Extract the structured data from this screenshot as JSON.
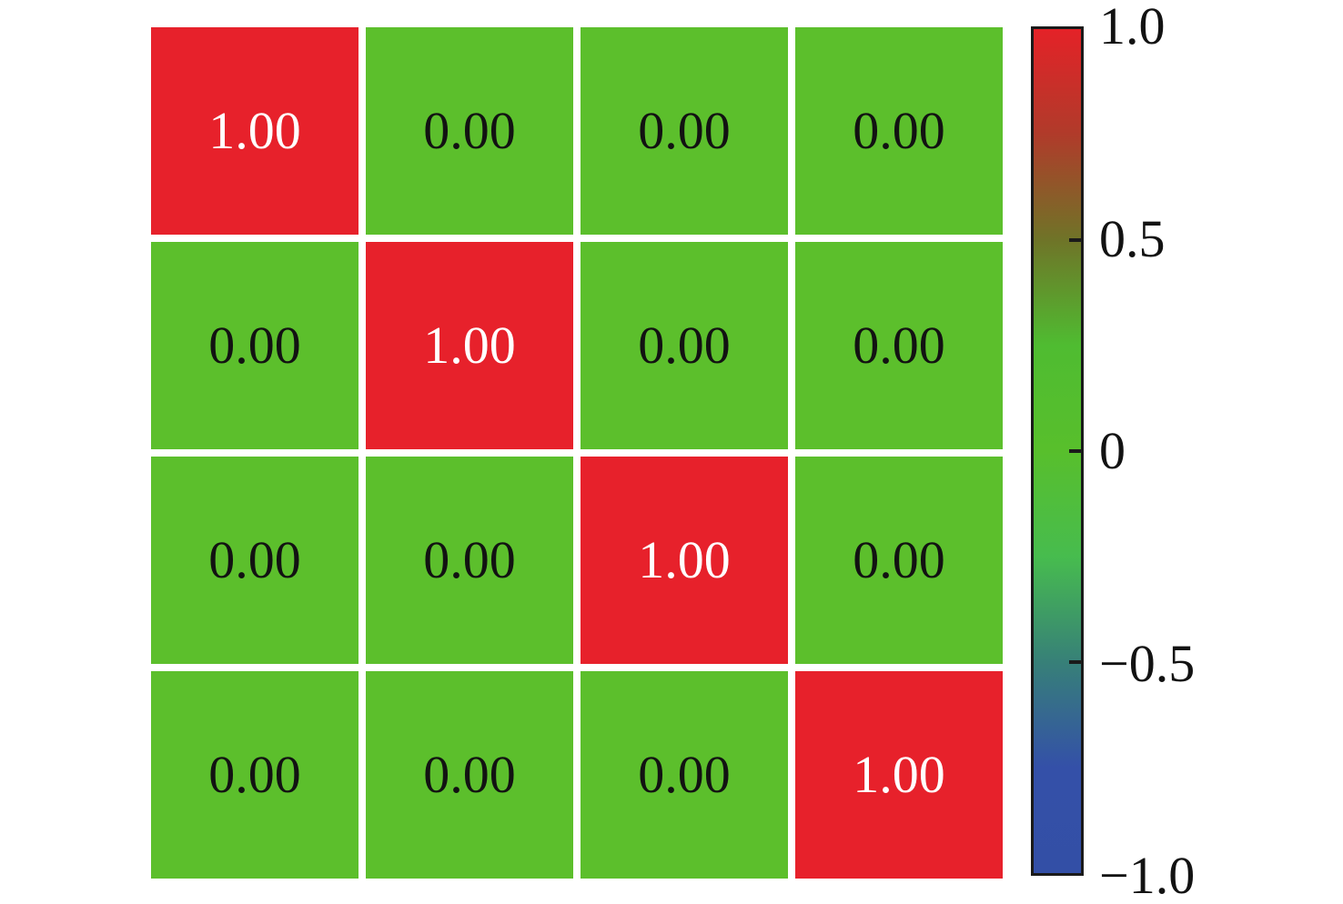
{
  "chart_data": {
    "type": "heatmap",
    "title": "",
    "matrix": [
      [
        1.0,
        0.0,
        0.0,
        0.0
      ],
      [
        0.0,
        1.0,
        0.0,
        0.0
      ],
      [
        0.0,
        0.0,
        1.0,
        0.0
      ],
      [
        0.0,
        0.0,
        0.0,
        1.0
      ]
    ],
    "cell_labels": [
      [
        "1.00",
        "0.00",
        "0.00",
        "0.00"
      ],
      [
        "0.00",
        "1.00",
        "0.00",
        "0.00"
      ],
      [
        "0.00",
        "0.00",
        "1.00",
        "0.00"
      ],
      [
        "0.00",
        "0.00",
        "0.00",
        "1.00"
      ]
    ],
    "value_range": [
      -1.0,
      1.0
    ],
    "grid_gap_color": "#ffffff",
    "cell_styles": {
      "1.00": {
        "bg": "#e7212b",
        "fg": "#ffffff"
      },
      "0.00": {
        "bg": "#5cbf2c",
        "fg": "#121212"
      }
    },
    "colorbar": {
      "position": "right",
      "border_color": "#1a1a1a",
      "ticks": [
        {
          "label": "1.0",
          "value": 1.0
        },
        {
          "label": "0.5",
          "value": 0.5
        },
        {
          "label": "0",
          "value": 0
        },
        {
          "label": "−0.5",
          "value": -0.5
        },
        {
          "label": "−1.0",
          "value": -1.0
        }
      ],
      "gradient_stops": [
        {
          "value": 1.0,
          "color": "#e42228"
        },
        {
          "value": 0.75,
          "color": "#b03b2a"
        },
        {
          "value": 0.5,
          "color": "#6f7428"
        },
        {
          "value": 0.25,
          "color": "#4fbc31"
        },
        {
          "value": 0.0,
          "color": "#58bf2c"
        },
        {
          "value": -0.25,
          "color": "#47bc4e"
        },
        {
          "value": -0.5,
          "color": "#378078"
        },
        {
          "value": -0.75,
          "color": "#3450a8"
        },
        {
          "value": -1.0,
          "color": "#334fa6"
        }
      ]
    }
  }
}
